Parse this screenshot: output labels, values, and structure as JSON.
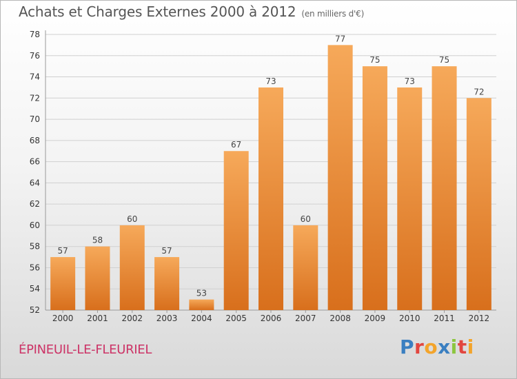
{
  "header": {
    "title": "Achats et Charges Externes 2000 à 2012",
    "unit": "(en milliers d'€)"
  },
  "footer": {
    "commune": "ÉPINEUIL-LE-FLEURIEL",
    "brand": "Proxiti",
    "brand_colors": [
      "#3a7fc1",
      "#e2463f",
      "#f3a42b",
      "#3a7fc1",
      "#8cc63f",
      "#e2463f",
      "#f3a42b"
    ]
  },
  "colors": {
    "bar_top": "#f6a95a",
    "bar_bottom": "#d86f1c"
  },
  "chart_data": {
    "type": "bar",
    "categories": [
      "2000",
      "2001",
      "2002",
      "2003",
      "2004",
      "2005",
      "2006",
      "2007",
      "2008",
      "2009",
      "2010",
      "2011",
      "2012"
    ],
    "values": [
      57,
      58,
      60,
      57,
      53,
      67,
      73,
      60,
      77,
      75,
      73,
      75,
      72
    ],
    "data_labels": [
      "57",
      "58",
      "60",
      "57",
      "53",
      "67",
      "73",
      "60",
      "77",
      "75",
      "73",
      "75",
      "72"
    ],
    "ylim": [
      52,
      78
    ],
    "yticks": [
      52,
      54,
      56,
      58,
      60,
      62,
      64,
      66,
      68,
      70,
      72,
      74,
      76,
      78
    ],
    "grid": true
  }
}
